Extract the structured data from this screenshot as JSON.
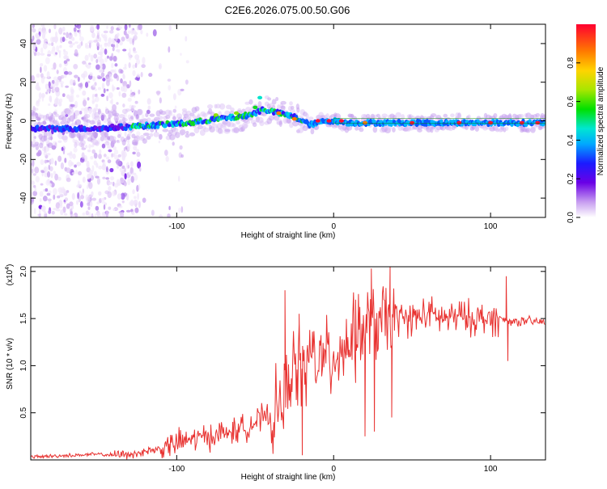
{
  "title": "C2E6.2026.075.00.50.G06",
  "chart_data": [
    {
      "type": "heatmap",
      "xlabel": "Height of straight line (km)",
      "ylabel": "Frequency (Hz)",
      "xlim": [
        -193,
        135
      ],
      "ylim": [
        -50,
        50
      ],
      "x_ticks": [
        -100,
        0,
        100
      ],
      "y_ticks": [
        -40,
        -20,
        0,
        20,
        40
      ],
      "x_tick_labels": [
        "-100",
        "0",
        "100"
      ],
      "y_tick_labels": [
        "-40",
        "-20",
        "0",
        "20",
        "40"
      ],
      "ridge": {
        "x": [
          -193,
          -150,
          -130,
          -110,
          -90,
          -75,
          -60,
          -50,
          -45,
          -40,
          -35,
          -30,
          -25,
          -20,
          -15,
          -10,
          -5,
          0,
          10,
          30,
          60,
          90,
          110,
          135
        ],
        "freq": [
          -4,
          -4,
          -3,
          -2,
          -1,
          1,
          2,
          4,
          6,
          5,
          4,
          3,
          2,
          0,
          -2,
          -1,
          0,
          0,
          -1,
          -1,
          -1,
          -1,
          -1,
          -1
        ]
      },
      "colorbar": {
        "label": "Normalized spectral amplitude",
        "range": [
          0,
          1
        ],
        "ticks": [
          0.0,
          0.2,
          0.4,
          0.6,
          0.8
        ],
        "tick_labels": [
          "0.0",
          "0.2",
          "0.4",
          "0.6",
          "0.8"
        ]
      }
    },
    {
      "type": "line",
      "xlabel": "Height of straight line (km)",
      "ylabel": "SNR (10 * v/v)",
      "y_multiplier": "(x10",
      "y_multiplier_exp": "4",
      "y_multiplier_close": ")",
      "xlim": [
        -193,
        135
      ],
      "ylim": [
        0,
        2.05
      ],
      "x_ticks": [
        -100,
        0,
        100
      ],
      "y_ticks": [
        0.5,
        1.0,
        1.5,
        2.0
      ],
      "x_tick_labels": [
        "-100",
        "0",
        "100"
      ],
      "y_tick_labels": [
        "0.5",
        "1.0",
        "1.5",
        "2.0"
      ],
      "series": [
        {
          "name": "SNR",
          "color": "#e8312f",
          "x": [
            -193,
            -180,
            -165,
            -150,
            -140,
            -130,
            -120,
            -110,
            -100,
            -90,
            -80,
            -70,
            -60,
            -50,
            -45,
            -40,
            -35,
            -30,
            -28,
            -26,
            -24,
            -22,
            -20,
            -18,
            -15,
            -10,
            -5,
            0,
            5,
            10,
            15,
            20,
            25,
            30,
            35,
            40,
            50,
            60,
            70,
            80,
            90,
            100,
            105,
            110,
            115,
            120,
            125,
            135
          ],
          "values": [
            0.03,
            0.04,
            0.05,
            0.06,
            0.05,
            0.06,
            0.09,
            0.12,
            0.18,
            0.22,
            0.25,
            0.28,
            0.32,
            0.4,
            0.45,
            0.42,
            0.55,
            0.7,
            0.9,
            1.05,
            0.85,
            1.1,
            0.95,
            0.9,
            1.15,
            1.05,
            1.05,
            1.1,
            1.2,
            1.25,
            1.3,
            1.4,
            1.42,
            1.45,
            1.47,
            1.5,
            1.5,
            1.55,
            1.5,
            1.52,
            1.5,
            1.5,
            1.5,
            1.48,
            1.47,
            1.47,
            1.47,
            1.46
          ],
          "spikes": [
            {
              "x": -31,
              "value": 1.8
            },
            {
              "x": -22,
              "value": 1.55
            },
            {
              "x": -20,
              "value": 0.05
            },
            {
              "x": 14,
              "value": 1.7
            },
            {
              "x": 20,
              "value": 0.25
            },
            {
              "x": 24,
              "value": 2.03
            },
            {
              "x": 26,
              "value": 0.3
            },
            {
              "x": 36,
              "value": 2.05
            },
            {
              "x": 37,
              "value": 0.45
            },
            {
              "x": 110,
              "value": 1.95
            },
            {
              "x": 111,
              "value": 1.05
            }
          ]
        }
      ]
    }
  ]
}
